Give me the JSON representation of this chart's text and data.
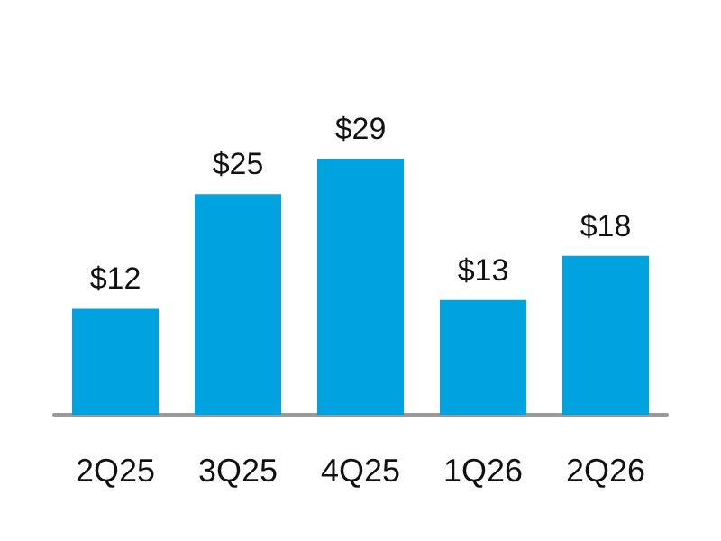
{
  "chart_data": {
    "type": "bar",
    "categories": [
      "2Q25",
      "3Q25",
      "4Q25",
      "1Q26",
      "2Q26"
    ],
    "values": [
      12,
      25,
      29,
      13,
      18
    ],
    "color": "#00a3e0",
    "value_labels": [
      "$12",
      "$25",
      "$29",
      "$13",
      "$18"
    ]
  }
}
